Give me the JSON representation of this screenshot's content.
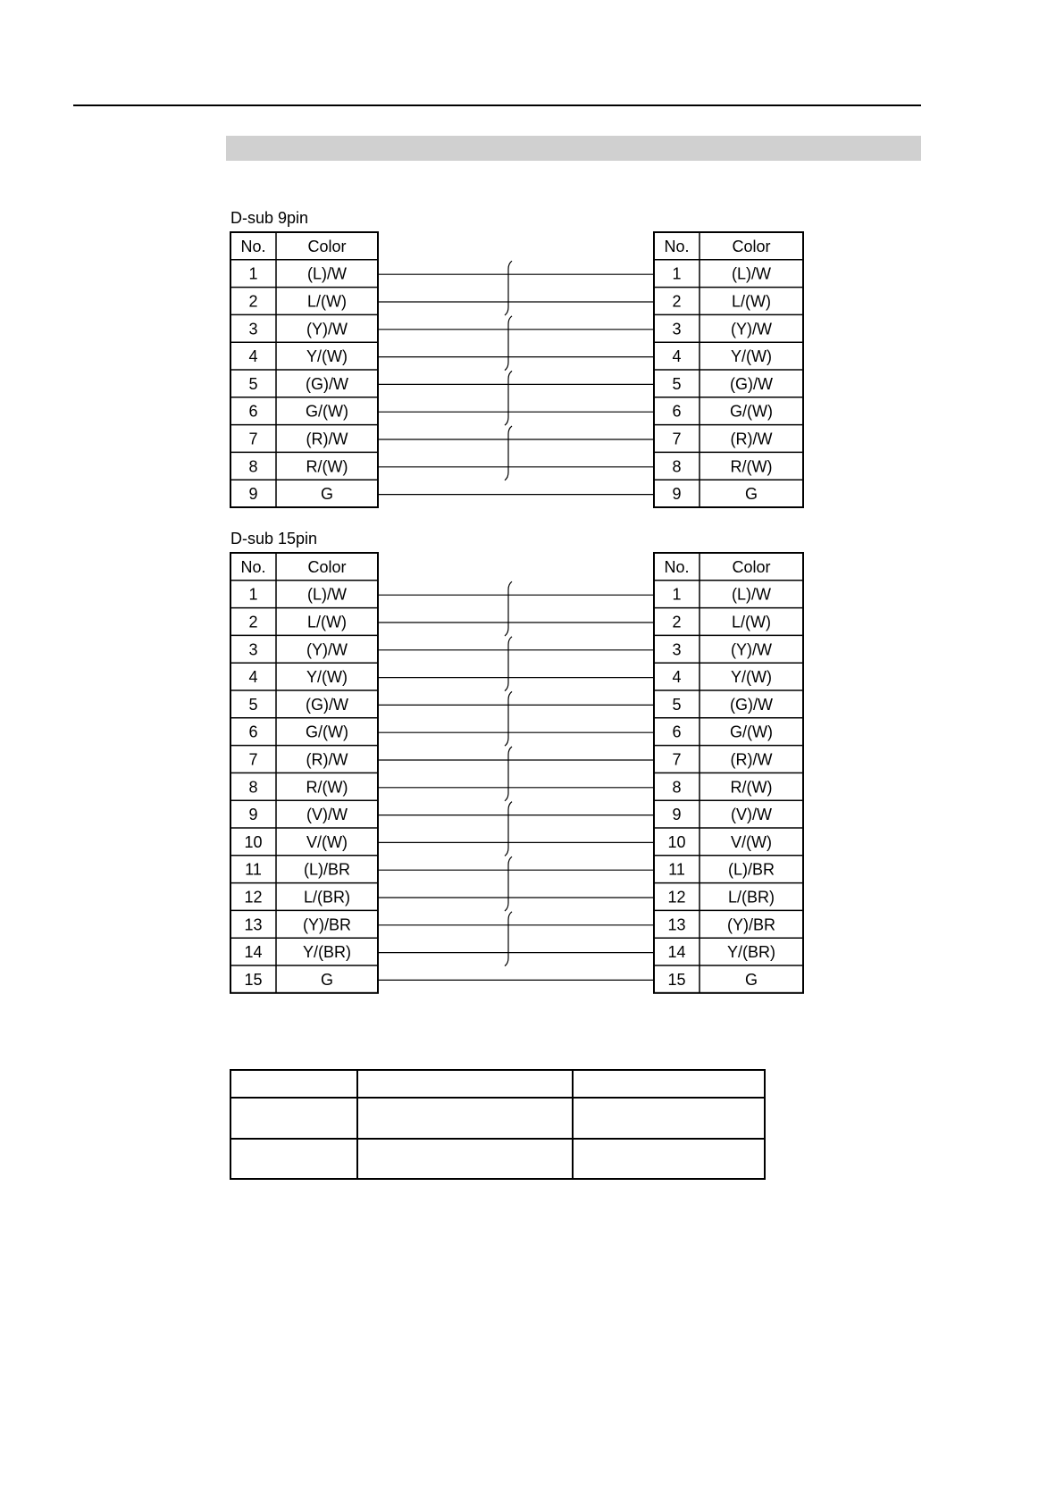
{
  "sections": [
    {
      "label": "D-sub 9pin",
      "header": {
        "no": "No.",
        "color": "Color"
      },
      "rows": [
        {
          "no": "1",
          "color": "(L)/W"
        },
        {
          "no": "2",
          "color": "L/(W)"
        },
        {
          "no": "3",
          "color": "(Y)/W"
        },
        {
          "no": "4",
          "color": "Y/(W)"
        },
        {
          "no": "5",
          "color": "(G)/W"
        },
        {
          "no": "6",
          "color": "G/(W)"
        },
        {
          "no": "7",
          "color": "(R)/W"
        },
        {
          "no": "8",
          "color": "R/(W)"
        },
        {
          "no": "9",
          "color": "G"
        }
      ],
      "twisted_pairs": [
        [
          1,
          2
        ],
        [
          3,
          4
        ],
        [
          5,
          6
        ],
        [
          7,
          8
        ]
      ]
    },
    {
      "label": "D-sub 15pin",
      "header": {
        "no": "No.",
        "color": "Color"
      },
      "rows": [
        {
          "no": "1",
          "color": "(L)/W"
        },
        {
          "no": "2",
          "color": "L/(W)"
        },
        {
          "no": "3",
          "color": "(Y)/W"
        },
        {
          "no": "4",
          "color": "Y/(W)"
        },
        {
          "no": "5",
          "color": "(G)/W"
        },
        {
          "no": "6",
          "color": "G/(W)"
        },
        {
          "no": "7",
          "color": "(R)/W"
        },
        {
          "no": "8",
          "color": "R/(W)"
        },
        {
          "no": "9",
          "color": "(V)/W"
        },
        {
          "no": "10",
          "color": "V/(W)"
        },
        {
          "no": "11",
          "color": "(L)/BR"
        },
        {
          "no": "12",
          "color": "L/(BR)"
        },
        {
          "no": "13",
          "color": "(Y)/BR"
        },
        {
          "no": "14",
          "color": "Y/(BR)"
        },
        {
          "no": "15",
          "color": "G"
        }
      ],
      "twisted_pairs": [
        [
          1,
          2
        ],
        [
          3,
          4
        ],
        [
          5,
          6
        ],
        [
          7,
          8
        ],
        [
          9,
          10
        ],
        [
          11,
          12
        ],
        [
          13,
          14
        ]
      ]
    }
  ],
  "header_bar_color": "#d0d0d0"
}
